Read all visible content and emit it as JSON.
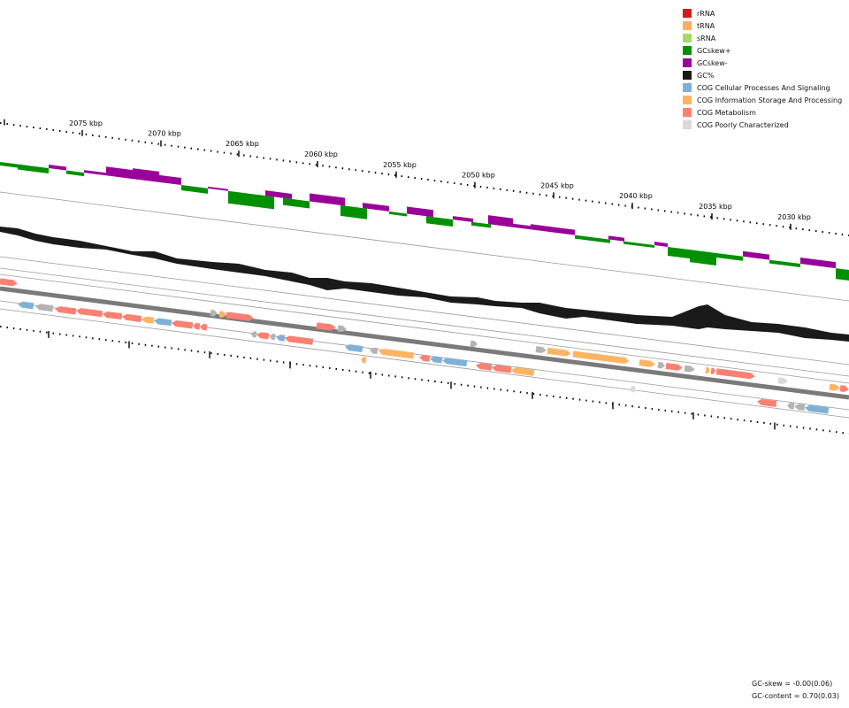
{
  "legend": [
    {
      "label": "rRNA",
      "color": "#d7191c"
    },
    {
      "label": "tRNA",
      "color": "#fdae61"
    },
    {
      "label": "sRNA",
      "color": "#a6d96a"
    },
    {
      "label": "GCskew+",
      "color": "#009000"
    },
    {
      "label": "GCskew-",
      "color": "#990099"
    },
    {
      "label": "GC%",
      "color": "#1a1a1a"
    },
    {
      "label": "COG Cellular Processes And Signaling",
      "color": "#7fb1d6"
    },
    {
      "label": "COG Information Storage And Processing",
      "color": "#fdb462"
    },
    {
      "label": "COG Metabolism",
      "color": "#fb8072"
    },
    {
      "label": "COG Poorly Characterized",
      "color": "#d9d9d9"
    }
  ],
  "scale_labels": [
    "2075 kbp",
    "2070 kbp",
    "2065 kbp",
    "2060 kbp",
    "2055 kbp",
    "2050 kbp",
    "2045 kbp",
    "2040 kbp",
    "2035 kbp",
    "2030 kbp"
  ],
  "stats": {
    "gc_skew": "GC-skew = -0.00(0.06)",
    "gc_content": "GC-content = 0.70(0.03)"
  },
  "colors": {
    "skew_pos": "#009000",
    "skew_neg": "#990099",
    "gc": "#1a1a1a",
    "backbone": "#7a7a7a",
    "guide": "#9a9a9a",
    "cog_cellular": "#7fb1d6",
    "cog_info": "#fdb462",
    "cog_metabolism": "#fb8072",
    "cog_poor": "#d9d9d9",
    "unclassified": "#b3b3b3"
  }
}
